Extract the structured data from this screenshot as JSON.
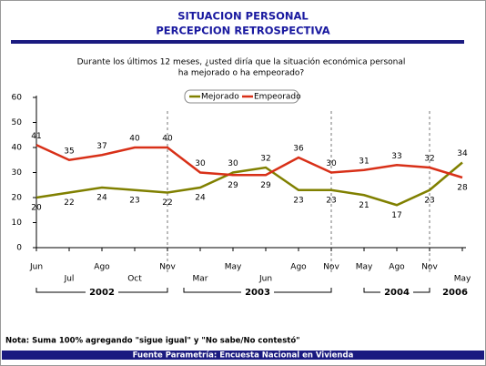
{
  "chart_data": {
    "type": "line",
    "title": "SITUACION PERSONAL",
    "subtitle": "PERCEPCION RETROSPECTIVA",
    "question": [
      "Durante los últimos 12 meses, ¿usted diría que la situación económica personal",
      "ha mejorado o ha empeorado?"
    ],
    "categories": [
      "Jun",
      "Jul",
      "Ago",
      "Oct",
      "Nov",
      "Mar",
      "May",
      "Jun",
      "Ago",
      "Nov",
      "May",
      "Ago",
      "Nov",
      "May"
    ],
    "years": [
      "2002",
      "2003",
      "2004",
      "2006"
    ],
    "series": [
      {
        "name": "Mejorado",
        "color": "#808000",
        "values": [
          20,
          22,
          24,
          23,
          22,
          24,
          30,
          32,
          23,
          23,
          21,
          17,
          23,
          34
        ]
      },
      {
        "name": "Empeorado",
        "color": "#d83018",
        "values": [
          41,
          35,
          37,
          40,
          40,
          30,
          29,
          29,
          36,
          30,
          31,
          33,
          32,
          28
        ]
      }
    ],
    "ylim": [
      0,
      60
    ],
    "yticks": [
      0,
      10,
      20,
      30,
      40,
      50,
      60
    ],
    "note": "Nota: Suma 100% agregando \"sigue igual\" y \"No sabe/No contestó\"",
    "source": "Fuente Parametría: Encuesta Nacional en Vivienda"
  }
}
